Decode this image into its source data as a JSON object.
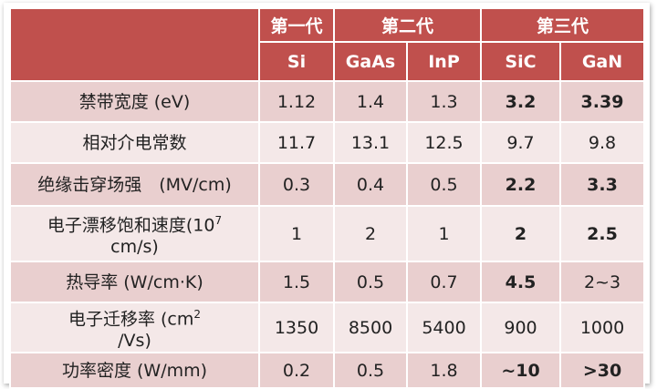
{
  "table": {
    "generations": [
      "第一代",
      "第二代",
      "第三代"
    ],
    "materials": [
      "Si",
      "GaAs",
      "InP",
      "SiC",
      "GaN"
    ],
    "rows": [
      {
        "label": "禁带宽度 (eV)",
        "values": [
          "1.12",
          "1.4",
          "1.3",
          "3.2",
          "3.39"
        ],
        "bold": [
          3,
          4
        ]
      },
      {
        "label": "相对介电常数",
        "values": [
          "11.7",
          "13.1",
          "12.5",
          "9.7",
          "9.8"
        ],
        "bold": []
      },
      {
        "label": "绝缘击穿场强　(MV/cm)",
        "values": [
          "0.3",
          "0.4",
          "0.5",
          "2.2",
          "3.3"
        ],
        "bold": [
          3,
          4
        ]
      },
      {
        "label": {
          "before": "电子漂移饱和速度(10",
          "sup": "7",
          "after": "cm/s)"
        },
        "values": [
          "1",
          "2",
          "1",
          "2",
          "2.5"
        ],
        "bold": [
          3,
          4
        ]
      },
      {
        "label": "热导率 (W/cm·K)",
        "values": [
          "1.5",
          "0.5",
          "0.7",
          "4.5",
          "2~3"
        ],
        "bold": [
          3
        ]
      },
      {
        "label": {
          "before": "电子迁移率 (cm",
          "sup": "2",
          "after": "/Vs)"
        },
        "values": [
          "1350",
          "8500",
          "5400",
          "900",
          "1000"
        ],
        "bold": []
      },
      {
        "label": "功率密度 (W/mm)",
        "values": [
          "0.2",
          "0.5",
          "1.8",
          "~10",
          ">30"
        ],
        "bold": [
          3,
          4
        ]
      }
    ]
  }
}
